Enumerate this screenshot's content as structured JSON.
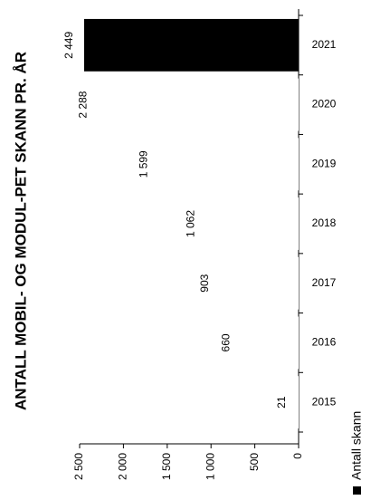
{
  "chart_data": {
    "type": "bar",
    "orientation": "rotated",
    "title": "ANTALL MOBIL- OG MODUL-PET SKANN PR. ÅR",
    "categories": [
      "2015",
      "2016",
      "2017",
      "2018",
      "2019",
      "2020",
      "2021"
    ],
    "series": [
      {
        "name": "Antall skann",
        "colors": [
          "#ffffff",
          "#ffffff",
          "#ffffff",
          "#ffffff",
          "#ffffff",
          "#ffffff",
          "#000000"
        ],
        "color": "#000000",
        "values": [
          21,
          660,
          903,
          1062,
          1599,
          2288,
          2449
        ],
        "value_labels": [
          "21",
          "660",
          "903",
          "1 062",
          "1 599",
          "2 288",
          "2 449"
        ]
      }
    ],
    "ylim": [
      0,
      2500
    ],
    "yticks": [
      0,
      500,
      {
        "value": 1000,
        "label": "1 000"
      },
      {
        "value": 1500,
        "label": "1 500"
      },
      {
        "value": 2000,
        "label": "2 000"
      },
      {
        "value": 2500,
        "label": "2 500"
      }
    ]
  }
}
